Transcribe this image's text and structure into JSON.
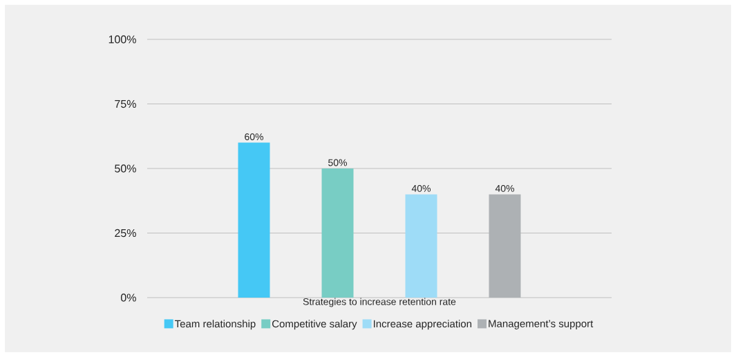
{
  "chart_data": {
    "type": "bar",
    "categories": [
      "Strategies to increase retention rate"
    ],
    "series": [
      {
        "name": "Team relationship",
        "color": "#45c8f5",
        "values": [
          60
        ],
        "value_labels": [
          "60%"
        ]
      },
      {
        "name": "Competitive salary",
        "color": "#78cdc4",
        "values": [
          50
        ],
        "value_labels": [
          "50%"
        ]
      },
      {
        "name": "Increase appreciation",
        "color": "#9edcf7",
        "values": [
          40
        ],
        "value_labels": [
          "40%"
        ]
      },
      {
        "name": "Management’s support",
        "color": "#adb1b4",
        "values": [
          40
        ],
        "value_labels": [
          "40%"
        ]
      }
    ],
    "ylim": [
      0,
      100
    ],
    "yticks": [
      {
        "value": 0,
        "label": "0%"
      },
      {
        "value": 25,
        "label": "25%"
      },
      {
        "value": 50,
        "label": "50%"
      },
      {
        "value": 75,
        "label": "75%"
      },
      {
        "value": 100,
        "label": "100%"
      }
    ],
    "grid": "y",
    "legend": "bottom"
  }
}
